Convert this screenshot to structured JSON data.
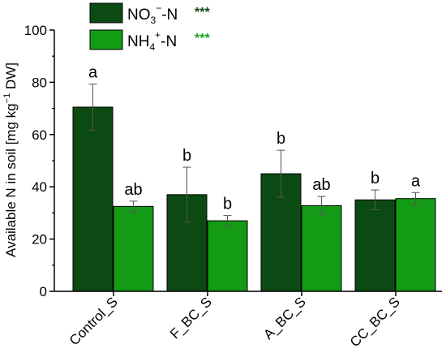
{
  "chart_data": {
    "type": "bar",
    "categories": [
      "Control_S",
      "F_BC_S",
      "A_BC_S",
      "CC_BC_S"
    ],
    "series": [
      {
        "name_main": "NO",
        "name_sub": "3",
        "name_sup": "−",
        "name_tail": "-N",
        "name_sig": "***",
        "color": "#0b4a12",
        "sig_color": "#0b4a12",
        "values": [
          70.5,
          37.0,
          45.0,
          35.0
        ],
        "errors": [
          8.8,
          10.5,
          9.0,
          3.8
        ],
        "letters": [
          "a",
          "b",
          "b",
          "b"
        ]
      },
      {
        "name_main": "NH",
        "name_sub": "4",
        "name_sup": "+",
        "name_tail": "-N",
        "name_sig": "***",
        "color": "#139b16",
        "sig_color": "#1fa31f",
        "values": [
          32.5,
          27.0,
          32.8,
          35.5
        ],
        "errors": [
          2.0,
          2.0,
          3.5,
          2.3
        ],
        "letters": [
          "ab",
          "b",
          "ab",
          "a"
        ]
      }
    ],
    "ylabel_pre": "Available N in soil [mg kg",
    "ylabel_sup": "−1",
    "ylabel_post": " DW]",
    "ylim": [
      0,
      100
    ],
    "yticks": [
      "0",
      "20",
      "40",
      "60",
      "80",
      "100"
    ],
    "legend_position": "top-center",
    "grid": false
  }
}
